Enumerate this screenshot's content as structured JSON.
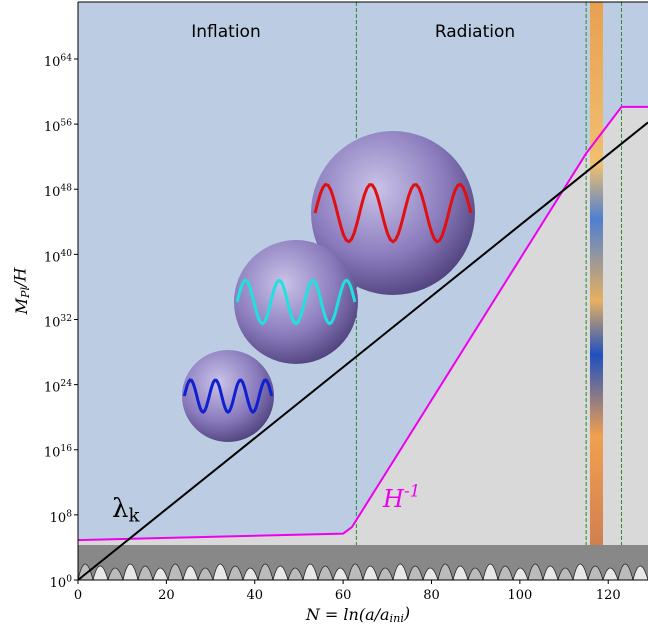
{
  "chart_data": {
    "type": "line",
    "xlabel": "N = ln(a/a_{ini})",
    "ylabel": "M_{Pl}/H",
    "annotations": [
      "Inflation",
      "Radiation"
    ],
    "xlim": [
      0,
      129
    ],
    "ylim": [
      1,
      1e+71
    ],
    "log_y": true,
    "xticks": [
      0,
      20,
      40,
      60,
      80,
      100,
      120
    ],
    "yticks": [
      {
        "value": 1,
        "label": "10^{0}"
      },
      {
        "value": 100000000.0,
        "label": "10^{8}"
      },
      {
        "value": 1e+16,
        "label": "10^{16}"
      },
      {
        "value": 1e+24,
        "label": "10^{24}"
      },
      {
        "value": 1e+32,
        "label": "10^{32}"
      },
      {
        "value": 1e+40,
        "label": "10^{40}"
      },
      {
        "value": 1e+48,
        "label": "10^{48}"
      },
      {
        "value": 1e+56,
        "label": "10^{56}"
      },
      {
        "value": 1e+64,
        "label": "10^{64}"
      }
    ],
    "vlines": [
      63,
      115,
      123
    ],
    "series": [
      {
        "name": "H^{-1}",
        "color": "#ee00ee",
        "x": [
          0,
          60,
          62,
          115,
          123,
          129
        ],
        "values": [
          79000,
          500000,
          3200000,
          2.5e+52,
          1.3e+58,
          1.3e+58
        ]
      },
      {
        "name": "λ_{k}",
        "color": "#000000",
        "x": [
          0,
          129
        ],
        "values": [
          1,
          1.6e+56
        ]
      }
    ]
  }
}
